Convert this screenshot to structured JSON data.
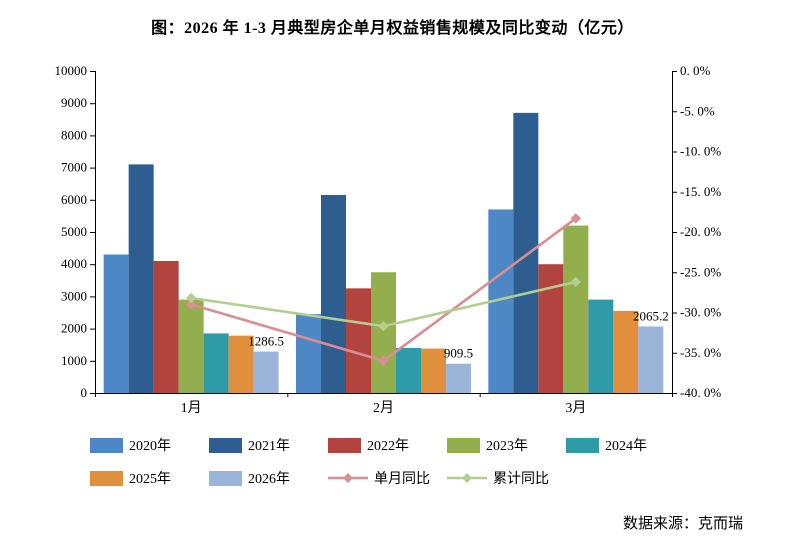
{
  "page": {
    "source": "数据来源：克而瑞"
  },
  "chart_data": {
    "type": "bar+line",
    "title": "图：2026 年 1-3 月典型房企单月权益销售规模及同比变动（亿元）",
    "categories": [
      "1月",
      "2月",
      "3月"
    ],
    "unit": "亿元",
    "grid": false,
    "legend_position": "bottom",
    "bar_series": [
      {
        "name": "2020年",
        "color": "#4E87C5",
        "values": [
          4300,
          2450,
          5700
        ]
      },
      {
        "name": "2021年",
        "color": "#2E5E90",
        "values": [
          7100,
          6150,
          8700
        ]
      },
      {
        "name": "2022年",
        "color": "#B3433F",
        "values": [
          4100,
          3250,
          4000
        ]
      },
      {
        "name": "2023年",
        "color": "#93AE4D",
        "values": [
          2900,
          3750,
          5200
        ]
      },
      {
        "name": "2024年",
        "color": "#2F9BA8",
        "values": [
          1850,
          1400,
          2900
        ]
      },
      {
        "name": "2025年",
        "color": "#E0903D",
        "values": [
          1780,
          1380,
          2550
        ]
      },
      {
        "name": "2026年",
        "color": "#9BB4D9",
        "values": [
          1286.5,
          909.5,
          2065.2
        ],
        "data_labels": [
          "1286.5",
          "909.5",
          "2065.2"
        ]
      }
    ],
    "line_series": [
      {
        "name": "单月同比",
        "color": "#D98E93",
        "values": [
          -29.0,
          -36.0,
          -18.3
        ]
      },
      {
        "name": "累计同比",
        "color": "#B3CE8E",
        "values": [
          -28.2,
          -31.7,
          -26.2
        ]
      }
    ],
    "left_axis": {
      "min": 0,
      "max": 10000,
      "ticks": [
        "0",
        "1000",
        "2000",
        "3000",
        "4000",
        "5000",
        "6000",
        "7000",
        "8000",
        "9000",
        "10000"
      ]
    },
    "right_axis": {
      "min": -40,
      "max": 0,
      "ticks": [
        "0. 0%",
        "-5. 0%",
        "-10. 0%",
        "-15. 0%",
        "-20. 0%",
        "-25. 0%",
        "-30. 0%",
        "-35. 0%",
        "-40. 0%"
      ]
    },
    "legend_rows": [
      [
        "2020年",
        "2021年",
        "2022年",
        "2023年",
        "2024年"
      ],
      [
        "2025年",
        "2026年",
        "单月同比",
        "累计同比"
      ]
    ]
  }
}
